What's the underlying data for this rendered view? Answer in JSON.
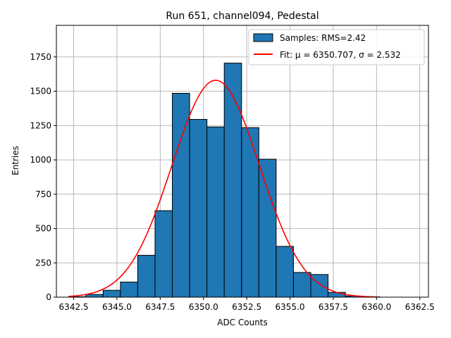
{
  "chart_data": {
    "type": "bar",
    "title": "Run 651, channel094, Pedestal",
    "xlabel": "ADC Counts",
    "ylabel": "Entries",
    "xlim": [
      6341.5,
      6363.0
    ],
    "ylim": [
      0,
      1980
    ],
    "grid": true,
    "legend_position": "top-right",
    "bar_color": "#1f77b4",
    "fit_color": "#ff0000",
    "xticks": [
      6342.5,
      6345.0,
      6347.5,
      6350.0,
      6352.5,
      6355.0,
      6357.5,
      6360.0,
      6362.5
    ],
    "xtick_labels": [
      "6342.5",
      "6345.0",
      "6347.5",
      "6350.0",
      "6352.5",
      "6355.0",
      "6357.5",
      "6360.0",
      "6362.5"
    ],
    "yticks": [
      0,
      250,
      500,
      750,
      1000,
      1250,
      1500,
      1750
    ],
    "ytick_labels": [
      "0",
      "250",
      "500",
      "750",
      "1000",
      "1250",
      "1500",
      "1750"
    ],
    "bins": {
      "edges": [
        6342.2,
        6343.2,
        6344.2,
        6345.2,
        6346.2,
        6347.2,
        6348.2,
        6349.2,
        6350.2,
        6351.2,
        6352.2,
        6353.2,
        6354.2,
        6355.2,
        6356.2,
        6357.2,
        6358.2,
        6359.2,
        6360.2
      ],
      "counts": [
        3,
        20,
        50,
        110,
        305,
        630,
        1485,
        1295,
        1240,
        1705,
        1235,
        1005,
        370,
        180,
        165,
        35,
        8,
        2
      ]
    },
    "series": [
      {
        "name": "Samples: RMS=2.42",
        "kind": "histogram"
      },
      {
        "name": "Fit: μ = 6350.707, σ = 2.532",
        "kind": "gaussian_fit",
        "mu": 6350.707,
        "sigma": 2.532,
        "amplitude": 1580,
        "x_range": [
          6342.2,
          6360.0
        ]
      }
    ]
  }
}
